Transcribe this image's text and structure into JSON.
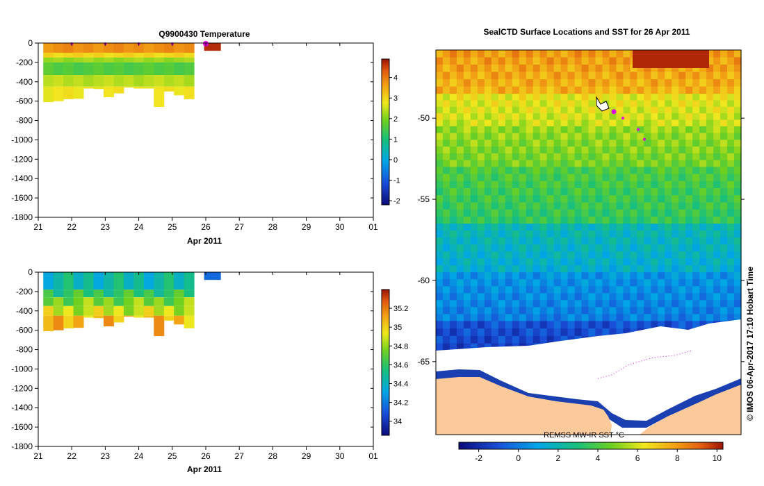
{
  "temperature_chart": {
    "title": "Q9900430  Temperature",
    "xlabel": "Apr 2011",
    "x_ticks": [
      "21",
      "22",
      "23",
      "24",
      "25",
      "26",
      "27",
      "28",
      "29",
      "30",
      "01"
    ],
    "y_ticks": [
      "0",
      "-200",
      "-400",
      "-600",
      "-800",
      "-1000",
      "-1200",
      "-1400",
      "-1600",
      "-1800"
    ],
    "colorbar_ticks": [
      "4",
      "3",
      "2",
      "1",
      "0",
      "-1",
      "-2"
    ]
  },
  "salinity_chart": {
    "xlabel": "Apr 2011",
    "x_ticks": [
      "21",
      "22",
      "23",
      "24",
      "25",
      "26",
      "27",
      "28",
      "29",
      "30",
      "01"
    ],
    "y_ticks": [
      "0",
      "-200",
      "-400",
      "-600",
      "-800",
      "-1000",
      "-1200",
      "-1400",
      "-1600",
      "-1800"
    ],
    "colorbar_ticks": [
      "35.2",
      "35",
      "34.8",
      "34.6",
      "34.4",
      "34.2",
      "34"
    ]
  },
  "map_panel": {
    "title": "SealCTD Surface Locations and SST for 26 Apr 2011",
    "lat_ticks": [
      "-50",
      "-55",
      "-60",
      "-65"
    ],
    "colorbar_label": "REMSS MW-IR SST °C",
    "colorbar_ticks": [
      "-2",
      "0",
      "2",
      "4",
      "6",
      "8",
      "10"
    ],
    "credit": "© IMOS 06-Apr-2017 17:10 Hobart Time"
  },
  "chart_data": [
    {
      "type": "heatmap",
      "title": "Q9900430  Temperature",
      "xlabel": "Apr 2011",
      "xlim": [
        "2011-04-21",
        "2011-05-01"
      ],
      "ylim": [
        -1800,
        0
      ],
      "colorbar_range": [
        -2.2,
        4.9
      ],
      "profile_times": [
        21.3,
        21.6,
        21.9,
        22.2,
        22.5,
        22.8,
        23.1,
        23.4,
        23.7,
        24.0,
        24.3,
        24.6,
        24.9,
        25.2,
        25.5
      ],
      "profile_max_depth": [
        -610,
        -600,
        -580,
        -575,
        -470,
        -475,
        -560,
        -520,
        -460,
        -470,
        -470,
        -660,
        -500,
        -540,
        -580
      ],
      "temperature_layers": [
        {
          "depth_top": 0,
          "depth_bottom": -100,
          "value": 3.8
        },
        {
          "depth_top": -100,
          "depth_bottom": -150,
          "value": 3.0
        },
        {
          "depth_top": -150,
          "depth_bottom": -200,
          "value": 2.2
        },
        {
          "depth_top": -200,
          "depth_bottom": -330,
          "value": 1.6
        },
        {
          "depth_top": -330,
          "depth_bottom": -450,
          "value": 2.4
        },
        {
          "depth_top": -450,
          "depth_bottom": -700,
          "value": 2.8
        }
      ],
      "latest_profile": {
        "time": 26.0,
        "max_depth": -80,
        "value": 4.7
      },
      "surface_markers": [
        22.0,
        23.0,
        24.0,
        25.0,
        26.0
      ]
    },
    {
      "type": "heatmap",
      "xlabel": "Apr 2011",
      "xlim": [
        "2011-04-21",
        "2011-05-01"
      ],
      "ylim": [
        -1800,
        0
      ],
      "colorbar_range": [
        33.85,
        35.4
      ],
      "profile_times": [
        21.3,
        21.6,
        21.9,
        22.2,
        22.5,
        22.8,
        23.1,
        23.4,
        23.7,
        24.0,
        24.3,
        24.6,
        24.9,
        25.2,
        25.5
      ],
      "profile_max_depth": [
        -610,
        -600,
        -580,
        -575,
        -470,
        -475,
        -560,
        -520,
        -460,
        -470,
        -470,
        -660,
        -500,
        -540,
        -580
      ],
      "salinity_layers": [
        {
          "depth_top": 0,
          "depth_bottom": -180,
          "value": 34.45
        },
        {
          "depth_top": -180,
          "depth_bottom": -260,
          "value": 34.6
        },
        {
          "depth_top": -260,
          "depth_bottom": -350,
          "value": 34.75
        },
        {
          "depth_top": -350,
          "depth_bottom": -450,
          "value": 34.88
        },
        {
          "depth_top": -450,
          "depth_bottom": -700,
          "value": 35.05
        }
      ],
      "latest_profile": {
        "time": 26.0,
        "max_depth": -80,
        "value": 34.15
      }
    },
    {
      "type": "heatmap",
      "title": "SealCTD Surface Locations and SST for 26 Apr 2011",
      "ylim": [
        -69.5,
        -45.8
      ],
      "colorbar_label": "REMSS MW-IR SST °C",
      "colorbar_range": [
        -3.0,
        10.3
      ],
      "sst_bands": [
        {
          "lat_top": -45.8,
          "lat_bottom": -48.5,
          "value": 8.0
        },
        {
          "lat_top": -48.5,
          "lat_bottom": -50.5,
          "value": 6.3
        },
        {
          "lat_top": -50.5,
          "lat_bottom": -53.0,
          "value": 5.2
        },
        {
          "lat_top": -53.0,
          "lat_bottom": -56.5,
          "value": 4.0
        },
        {
          "lat_top": -56.5,
          "lat_bottom": -59.5,
          "value": 2.0
        },
        {
          "lat_top": -59.5,
          "lat_bottom": -62.5,
          "value": 0.6
        },
        {
          "lat_top": -62.5,
          "lat_bottom": -64.8,
          "value": -1.0
        }
      ],
      "seal_surface_positions_lat": [
        -49.6,
        -50.0,
        -50.7,
        -51.3
      ]
    }
  ]
}
